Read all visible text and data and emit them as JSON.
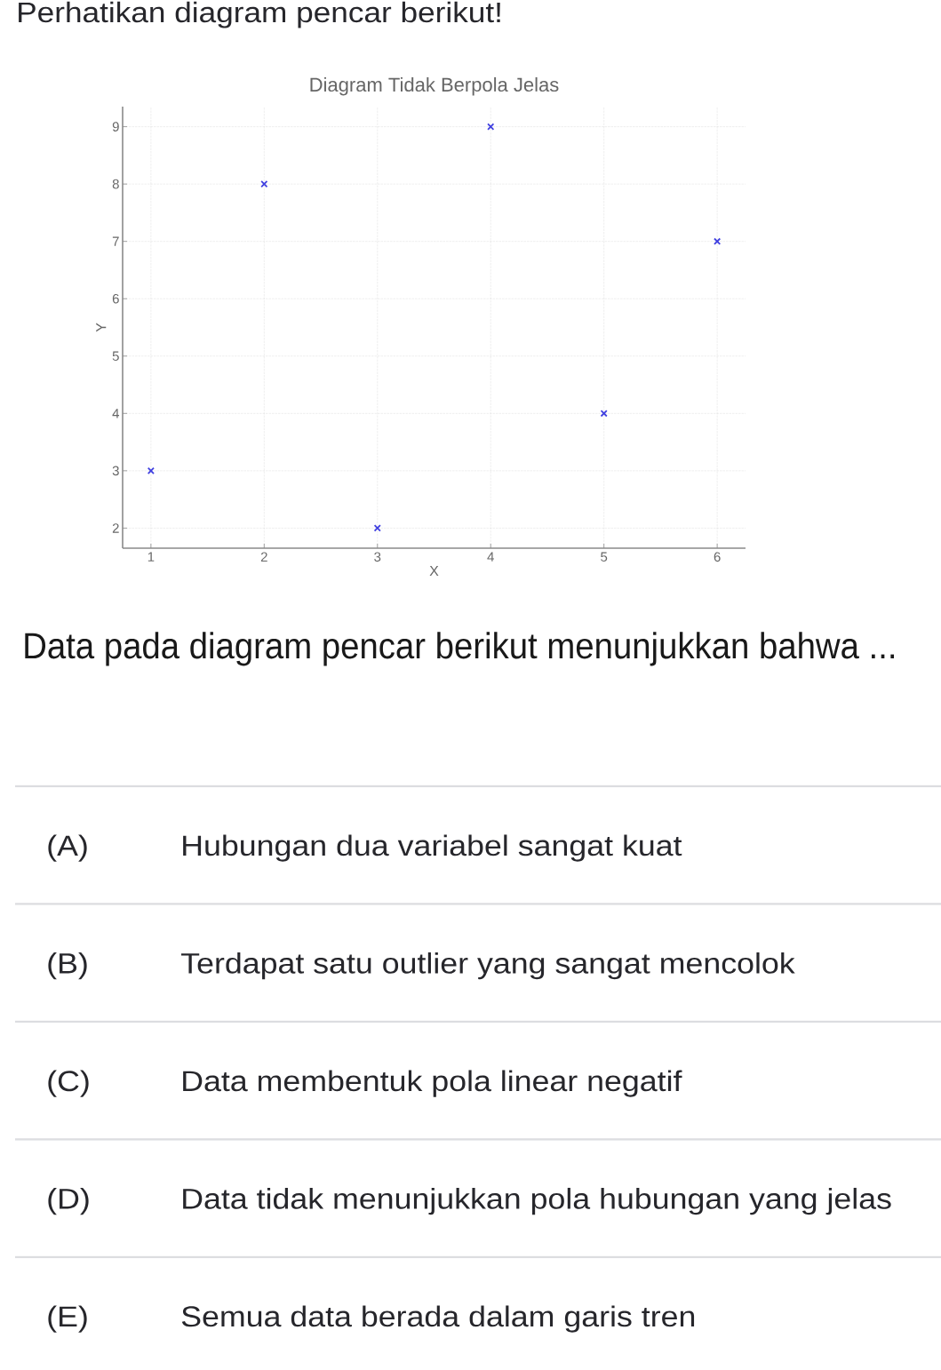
{
  "chart_data": {
    "type": "scatter",
    "title": "Diagram Tidak Berpola Jelas",
    "xlabel": "X",
    "ylabel": "Y",
    "x": [
      1,
      2,
      3,
      4,
      5,
      6
    ],
    "values": [
      3,
      8,
      2,
      9,
      4,
      7
    ],
    "color": "#4040e0",
    "marker": "cross",
    "xlim": [
      0.75,
      6.25
    ],
    "ylim": [
      1.65,
      9.35
    ],
    "xticks": [
      1,
      2,
      3,
      4,
      5,
      6
    ],
    "yticks": [
      2,
      3,
      4,
      5,
      6,
      7,
      8,
      9
    ],
    "grid": true,
    "annotations": [
      "Perhatikan diagram pencar berikut!",
      "Data pada diagram pencar berikut menunjukkan bahwa ...",
      "(A)",
      "Hubungan dua variabel sangat kuat",
      "(B)",
      "Terdapat satu outlier yang sangat mencolok",
      "(C)",
      "Data membentuk pola linear negatif",
      "(D)",
      "Data tidak menunjukkan pola hubungan yang jelas",
      "(E)",
      "Semua data berada dalam garis tren"
    ]
  }
}
